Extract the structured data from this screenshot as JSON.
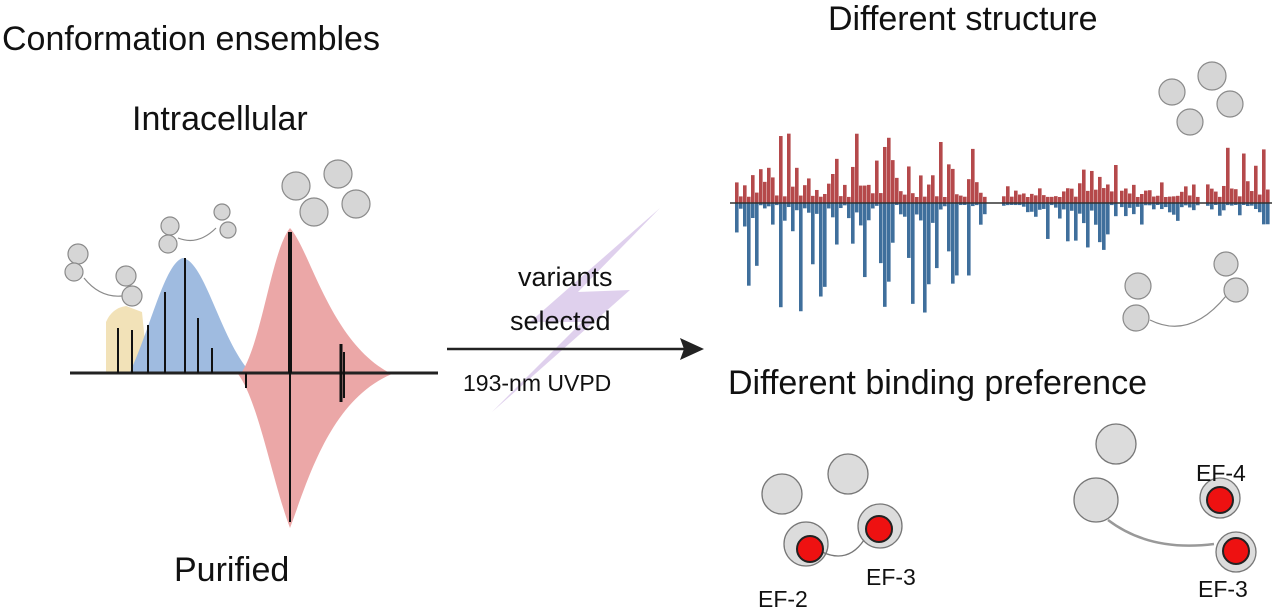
{
  "labels": {
    "left_title": "Conformation ensembles",
    "intracellular": "Intracellular",
    "purified": "Purified",
    "arrow_top_1": "variants",
    "arrow_top_2": "selected",
    "arrow_bottom": "193-nm UVPD",
    "right_title_top": "Different structure",
    "right_title_bottom": "Different binding preference",
    "ef2": "EF-2",
    "ef3_left": "EF-3",
    "ef4": "EF-4",
    "ef3_right": "EF-3"
  },
  "colors": {
    "yellow_fill": "#f2e2b8",
    "blue_fill": "#9fbbe0",
    "pink_fill": "#eba7a7",
    "lightning": "#d9c8ea",
    "red_bars": "#b5494b",
    "blue_bars": "#3f6f9c",
    "binding_dot": "#ee1111",
    "protein": "#aaaaaa"
  },
  "icons": [
    "protein-structure-icon",
    "lightning-bolt-icon",
    "binding-site-dot-icon"
  ]
}
